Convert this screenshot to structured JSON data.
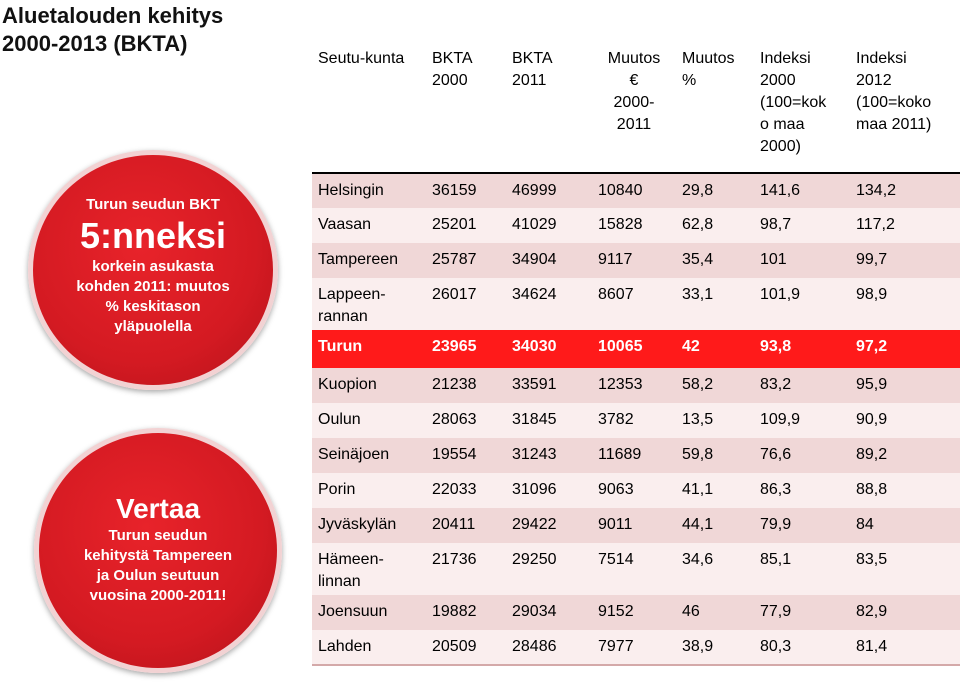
{
  "title_lines": [
    "Aluetalouden kehitys",
    "2000-2013 (BKTA)"
  ],
  "badge1": {
    "line1": "Turun seudun BKT",
    "big": "5:nneksi",
    "line3": "korkein asukasta",
    "line4": "kohden 2011: muutos",
    "line5": "% keskitason",
    "line6": "yläpuolella"
  },
  "badge2": {
    "big": "Vertaa",
    "line2": "Turun seudun",
    "line3": "kehitystä Tampereen",
    "line4": "ja Oulun seutuun",
    "line5": "vuosina 2000-2011!"
  },
  "table": {
    "headers": [
      [
        "Seutu-kunta"
      ],
      [
        "BKTA",
        "2000"
      ],
      [
        "BKTA",
        "2011"
      ],
      [
        "Muutos",
        "€",
        "2000-",
        "2011"
      ],
      [
        "Muutos",
        "%"
      ],
      [
        "Indeksi",
        "2000",
        "(100=kok",
        "o maa",
        "2000)"
      ],
      [
        "Indeksi",
        "2012",
        "(100=koko",
        "maa 2011)"
      ]
    ],
    "rows": [
      {
        "region": [
          "Helsingin"
        ],
        "v": [
          "36159",
          "46999",
          "10840",
          "29,8",
          "141,6",
          "134,2"
        ]
      },
      {
        "region": [
          "Vaasan"
        ],
        "v": [
          "25201",
          "41029",
          "15828",
          "62,8",
          "98,7",
          "117,2"
        ]
      },
      {
        "region": [
          "Tampereen"
        ],
        "v": [
          "25787",
          "34904",
          "9117",
          "35,4",
          "101",
          "99,7"
        ]
      },
      {
        "region": [
          "Lappeen-",
          "rannan"
        ],
        "v": [
          "26017",
          "34624",
          "8607",
          "33,1",
          "101,9",
          "98,9"
        ]
      },
      {
        "region": [
          "Turun"
        ],
        "v": [
          "23965",
          "34030",
          "10065",
          "42",
          "93,8",
          "97,2"
        ]
      },
      {
        "region": [
          "Kuopion"
        ],
        "v": [
          "21238",
          "33591",
          "12353",
          "58,2",
          "83,2",
          "95,9"
        ]
      },
      {
        "region": [
          "Oulun"
        ],
        "v": [
          "28063",
          "31845",
          "3782",
          "13,5",
          "109,9",
          "90,9"
        ]
      },
      {
        "region": [
          "Seinäjoen"
        ],
        "v": [
          "19554",
          "31243",
          "11689",
          "59,8",
          "76,6",
          "89,2"
        ]
      },
      {
        "region": [
          "Porin"
        ],
        "v": [
          "22033",
          "31096",
          "9063",
          "41,1",
          "86,3",
          "88,8"
        ]
      },
      {
        "region": [
          "Jyväskylän"
        ],
        "v": [
          "20411",
          "29422",
          "9011",
          "44,1",
          "79,9",
          "84"
        ]
      },
      {
        "region": [
          "Hämeen-",
          "linnan"
        ],
        "v": [
          "21736",
          "29250",
          "7514",
          "34,6",
          "85,1",
          "83,5"
        ]
      },
      {
        "region": [
          "Joensuun"
        ],
        "v": [
          "19882",
          "29034",
          "9152",
          "46",
          "77,9",
          "82,9"
        ]
      },
      {
        "region": [
          "Lahden"
        ],
        "v": [
          "20509",
          "28486",
          "7977",
          "38,9",
          "80,3",
          "81,4"
        ]
      }
    ]
  }
}
